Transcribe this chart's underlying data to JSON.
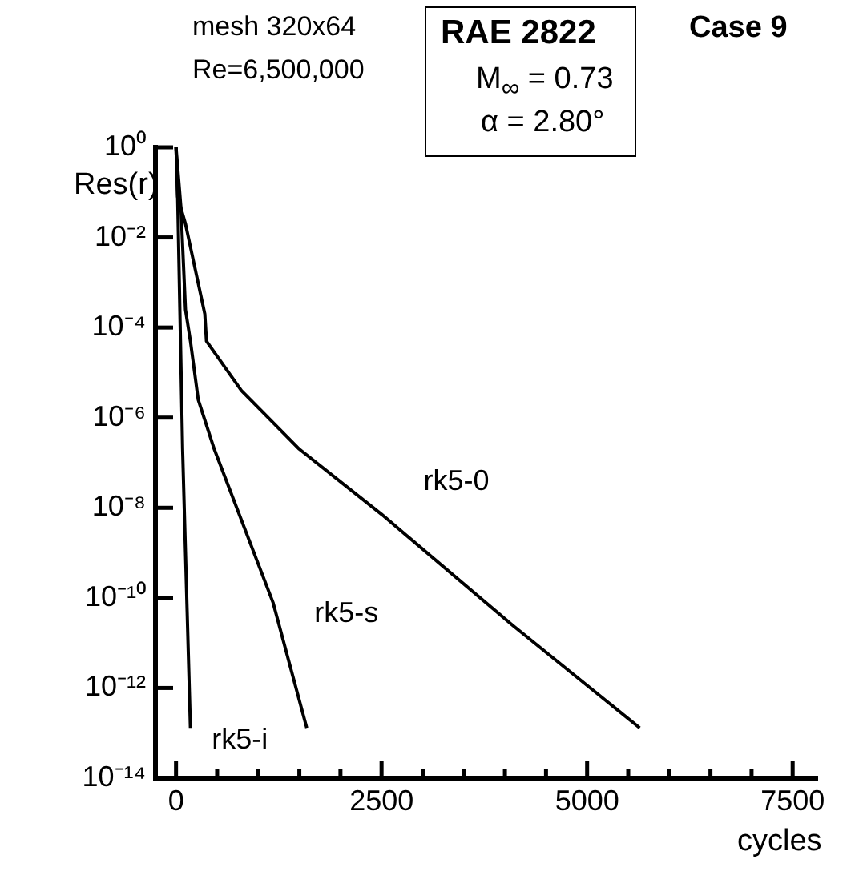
{
  "chart_data": {
    "type": "line",
    "title": "Case 9",
    "ylabel": "Res(r)",
    "xlabel": "cycles",
    "annotations": [
      "mesh 320x64",
      "Re=6,500,000",
      "RAE 2822",
      "M$_{∞}$ = 0.73",
      "α = 2.80°"
    ],
    "log": "y",
    "grid": false,
    "legend": false,
    "marker": "none",
    "line_style": "solid",
    "xlim": [
      -250,
      7800
    ],
    "xticks": [
      0,
      {
        "value": 500,
        "label": null
      },
      {
        "value": 1000,
        "label": null
      },
      {
        "value": 1500,
        "label": null
      },
      {
        "value": 2000,
        "label": null
      },
      2500,
      {
        "value": 3000,
        "label": null
      },
      {
        "value": 3500,
        "label": null
      },
      {
        "value": 4000,
        "label": null
      },
      {
        "value": 4500,
        "label": null
      },
      5000,
      {
        "value": 5500,
        "label": null
      },
      {
        "value": 6000,
        "label": null
      },
      {
        "value": 6500,
        "label": null
      },
      {
        "value": 7000,
        "label": null
      },
      7500
    ],
    "ylim": [
      1e-14,
      1
    ],
    "yticks": [
      {
        "value": 1,
        "label": "10⁰"
      },
      {
        "value": 0.01,
        "label": "10⁻²"
      },
      {
        "value": 0.0001,
        "label": "10⁻⁴"
      },
      {
        "value": 1e-06,
        "label": "10⁻⁶"
      },
      {
        "value": 1e-08,
        "label": "10⁻⁸"
      },
      {
        "value": 1e-10,
        "label": "10⁻¹⁰"
      },
      {
        "value": 1e-12,
        "label": "10⁻¹²"
      },
      {
        "value": 1e-14,
        "label": "10⁻¹⁴"
      }
    ],
    "series": [
      {
        "name": "rk5-0",
        "color": "#000000",
        "x": [
          0,
          20,
          115,
          350,
          370,
          795,
          1500,
          2500,
          4090,
          5640
        ],
        "values": [
          1,
          0.079,
          0.02,
          0.0002,
          5e-05,
          4e-06,
          2e-07,
          7.2e-09,
          2.5e-11,
          1.3e-13
        ]
      },
      {
        "name": "rk5-s",
        "color": "#000000",
        "x": [
          0,
          60,
          115,
          175,
          270,
          465,
          1180,
          1590
        ],
        "values": [
          1,
          0.045,
          0.00025,
          5e-05,
          2.5e-06,
          2e-07,
          7.9e-11,
          1.3e-13
        ]
      },
      {
        "name": "rk5-i",
        "color": "#000000",
        "x": [
          0,
          20,
          80,
          175
        ],
        "values": [
          1,
          0.079,
          2e-07,
          1.3e-13
        ]
      }
    ]
  }
}
